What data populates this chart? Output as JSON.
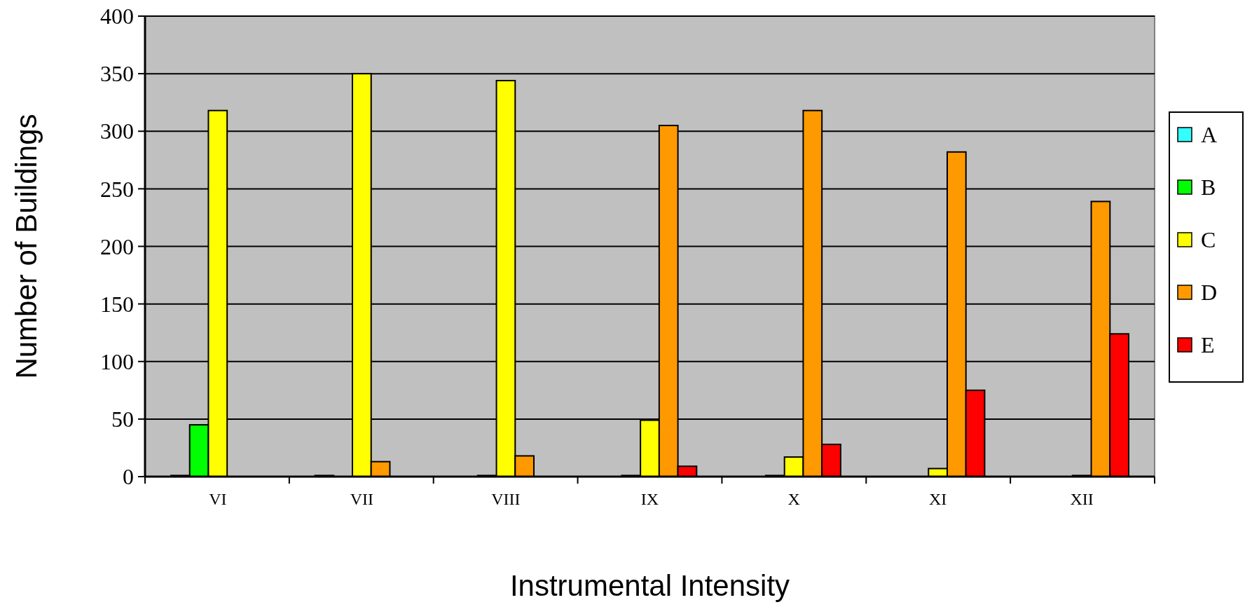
{
  "chart_data": {
    "type": "bar",
    "xlabel": "Instrumental Intensity",
    "ylabel": "Number of Buildings",
    "categories": [
      "VI",
      "VII",
      "VIII",
      "IX",
      "X",
      "XI",
      "XII"
    ],
    "series": [
      {
        "name": "A",
        "color": "#33ffff",
        "values": [
          1,
          1,
          0,
          0,
          0,
          0,
          0
        ]
      },
      {
        "name": "B",
        "color": "#00ff00",
        "values": [
          45,
          0,
          1,
          1,
          1,
          0,
          0
        ]
      },
      {
        "name": "C",
        "color": "#ffff00",
        "values": [
          318,
          350,
          344,
          49,
          17,
          7,
          1
        ]
      },
      {
        "name": "D",
        "color": "#ff9900",
        "values": [
          0,
          13,
          18,
          305,
          318,
          282,
          239
        ]
      },
      {
        "name": "E",
        "color": "#ff0000",
        "values": [
          0,
          0,
          0,
          9,
          28,
          75,
          124
        ]
      }
    ],
    "ylim": [
      0,
      400
    ],
    "yticks": [
      0,
      50,
      100,
      150,
      200,
      250,
      300,
      350,
      400
    ],
    "grid": "y",
    "legend": "right"
  }
}
